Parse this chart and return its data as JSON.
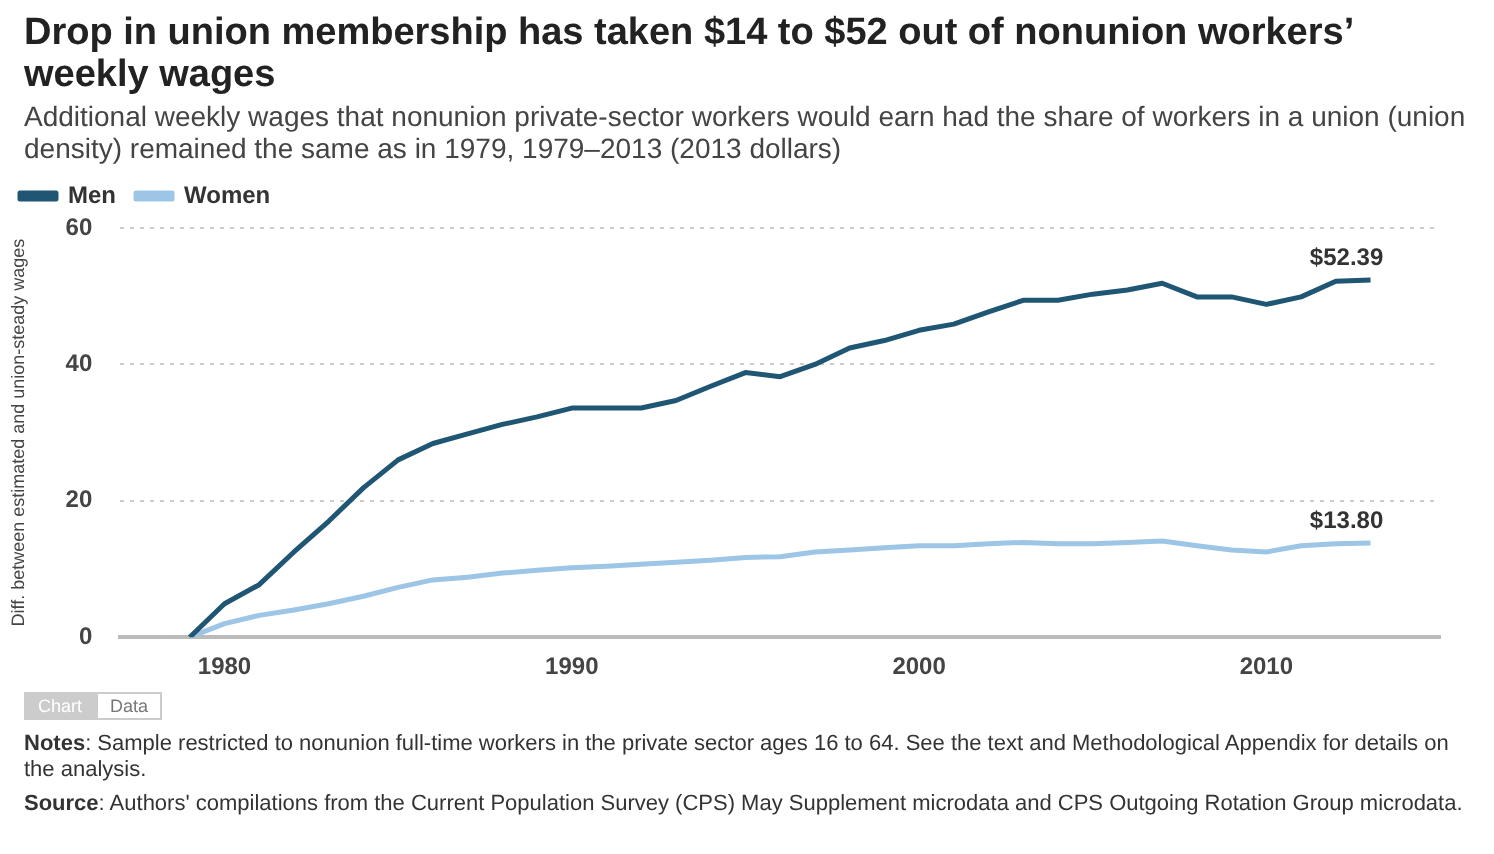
{
  "chart_data": {
    "type": "line",
    "title": "Drop in union membership has taken $14 to $52 out of nonunion workers’ weekly wages",
    "subtitle": "Additional weekly wages that nonunion private-sector workers would earn had the share of workers in a union (union density) remained the same as in 1979, 1979–2013 (2013 dollars)",
    "ylabel": "Diff. between estimated and union-steady wages",
    "x": [
      1979,
      1980,
      1981,
      1982,
      1983,
      1984,
      1985,
      1986,
      1987,
      1988,
      1989,
      1990,
      1991,
      1992,
      1993,
      1994,
      1995,
      1996,
      1997,
      1998,
      1999,
      2000,
      2001,
      2002,
      2003,
      2004,
      2005,
      2006,
      2007,
      2008,
      2009,
      2010,
      2011,
      2012,
      2013
    ],
    "series": [
      {
        "name": "Men",
        "color": "#1f5673",
        "values": [
          0,
          4.9,
          7.7,
          12.5,
          17,
          21.9,
          26,
          28.4,
          29.8,
          31.2,
          32.3,
          33.6,
          33.6,
          33.6,
          34.7,
          36.8,
          38.8,
          38.2,
          40,
          42.4,
          43.5,
          45,
          45.9,
          47.7,
          49.4,
          49.4,
          50.3,
          50.9,
          51.9,
          49.9,
          49.9,
          48.8,
          49.9,
          52.2,
          52.39
        ]
      },
      {
        "name": "Women",
        "color": "#9cc5e6",
        "values": [
          0,
          2,
          3.2,
          4,
          4.9,
          6,
          7.3,
          8.4,
          8.8,
          9.4,
          9.8,
          10.2,
          10.4,
          10.7,
          11,
          11.3,
          11.7,
          11.8,
          12.5,
          12.8,
          13.1,
          13.4,
          13.4,
          13.7,
          13.9,
          13.7,
          13.7,
          13.9,
          14.1,
          13.4,
          12.8,
          12.5,
          13.4,
          13.7,
          13.8
        ]
      }
    ],
    "xlim": [
      1977,
      2015
    ],
    "xticks": [
      1980,
      1990,
      2000,
      2010
    ],
    "ylim": [
      0,
      60
    ],
    "yticks": [
      0,
      20,
      40,
      60
    ],
    "grid": "y",
    "legend": "top left",
    "marker": "none",
    "line_style": "solid",
    "annotations": [
      {
        "text": "$52.39",
        "x": 2013,
        "y": 52.39
      },
      {
        "text": "$13.80",
        "x": 2013,
        "y": 13.8
      },
      "Chart",
      "Data",
      "Notes: Sample restricted to nonunion full-time workers in the private sector ages 16 to 64. See the text and Methodological Appendix for details on the analysis.",
      "Source: Authors' compilations from the Current Population Survey (CPS) May Supplement microdata and CPS Outgoing Rotation Group microdata."
    ]
  }
}
